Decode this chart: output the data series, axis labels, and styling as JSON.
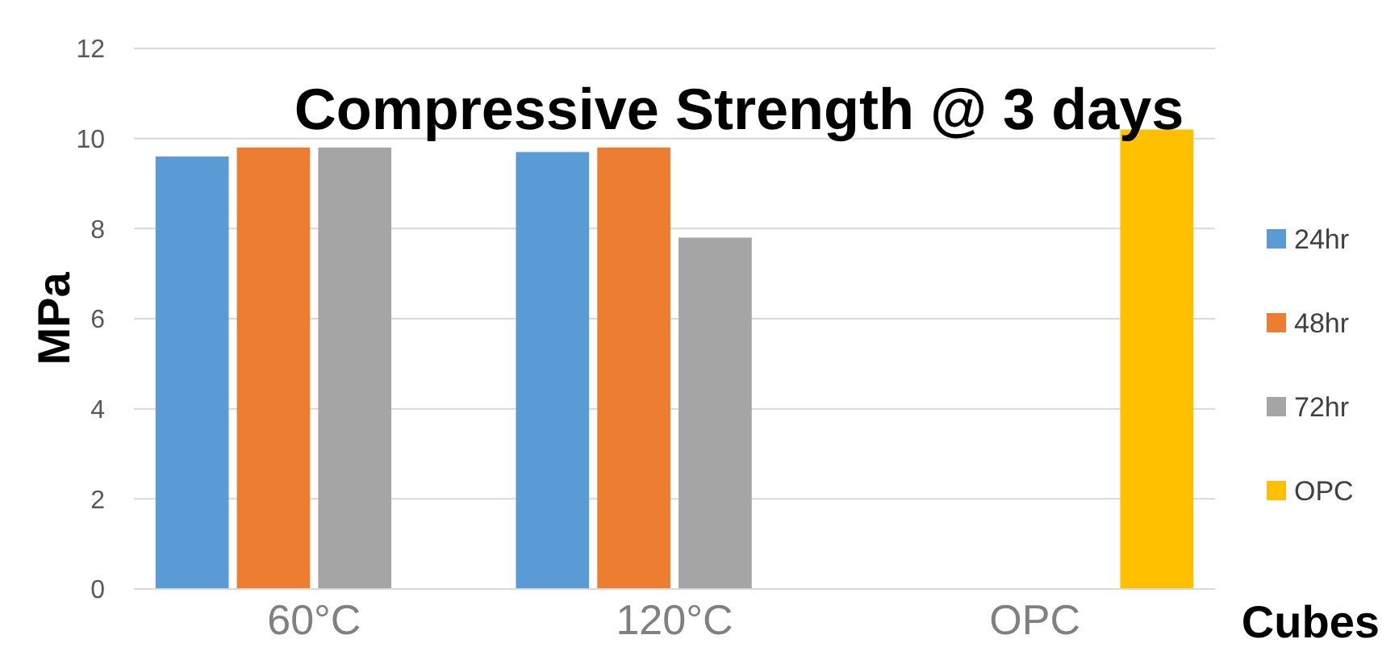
{
  "chart_data": {
    "type": "bar",
    "title": "Compressive Strength @ 3 days",
    "xlabel": "Cubes",
    "ylabel": "MPa",
    "categories": [
      "60°C",
      "120°C",
      "OPC"
    ],
    "series": [
      {
        "name": "24hr",
        "color": "#5b9bd5",
        "values": [
          9.6,
          9.7,
          null
        ]
      },
      {
        "name": "48hr",
        "color": "#ed7d31",
        "values": [
          9.8,
          9.8,
          null
        ]
      },
      {
        "name": "72hr",
        "color": "#a5a5a5",
        "values": [
          9.8,
          7.8,
          null
        ]
      },
      {
        "name": "OPC",
        "color": "#ffc000",
        "values": [
          null,
          null,
          10.2
        ]
      }
    ],
    "ylim": [
      0,
      12
    ],
    "yticks": [
      0,
      2,
      4,
      6,
      8,
      10,
      12
    ],
    "grid": "y",
    "legend": "right"
  }
}
